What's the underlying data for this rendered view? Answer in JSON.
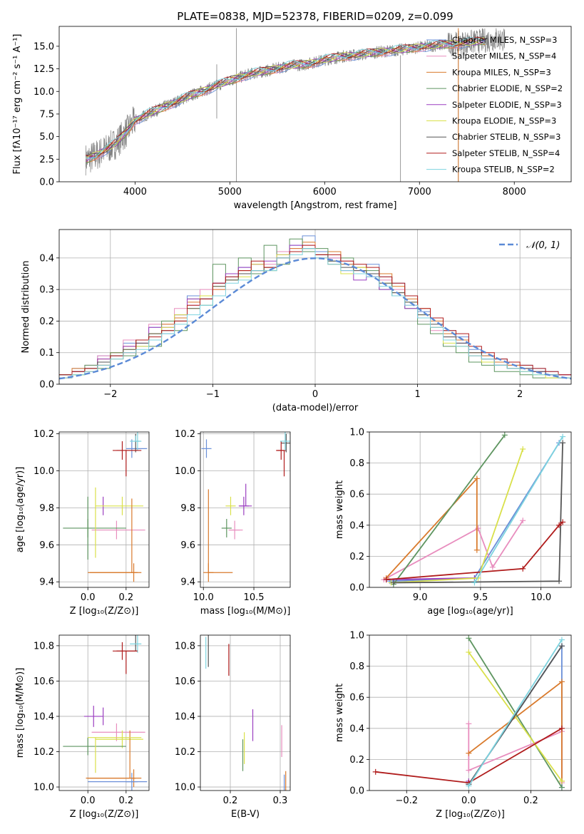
{
  "chart_data": [
    {
      "id": "spectrum",
      "type": "line",
      "title": "PLATE=0838, MJD=52378, FIBERID=0209, z=0.099",
      "xlabel": "wavelength [Angstrom, rest frame]",
      "ylabel": "Flux [fλ10⁻¹⁷ erg cm⁻² s⁻¹ A⁻¹]",
      "xlim": [
        3200,
        8600
      ],
      "ylim": [
        0,
        17.2
      ],
      "xticks": [
        4000,
        5000,
        6000,
        7000,
        8000
      ],
      "yticks": [
        0.0,
        2.5,
        5.0,
        7.5,
        10.0,
        12.5,
        15.0
      ],
      "data_series": {
        "name": "data",
        "color": "#808080",
        "x": [
          3500,
          3600,
          3700,
          3800,
          3900,
          4000,
          4200,
          4400,
          4600,
          4800,
          5000,
          5200,
          5400,
          5600,
          5800,
          6000,
          6200,
          6400,
          6600,
          6800,
          7000,
          7200,
          7400,
          7600,
          7800
        ],
        "y": [
          2.5,
          3.0,
          3.6,
          4.3,
          5.4,
          6.8,
          7.8,
          8.7,
          9.6,
          10.4,
          11.2,
          11.9,
          12.3,
          12.8,
          13.0,
          13.5,
          13.9,
          14.1,
          14.4,
          14.6,
          14.9,
          15.1,
          15.3,
          15.5,
          15.8
        ]
      },
      "legend": [
        "Chabrier MILES, N_SSP=3",
        "Salpeter MILES, N_SSP=4",
        "Kroupa MILES, N_SSP=3",
        "Chabrier ELODIE, N_SSP=2",
        "Salpeter ELODIE, N_SSP=3",
        "Kroupa ELODIE, N_SSP=3",
        "Chabrier STELIB, N_SSP=3",
        "Salpeter STELIB, N_SSP=4",
        "Kroupa STELIB, N_SSP=2"
      ],
      "legend_position": "right",
      "grid": false
    },
    {
      "id": "residuals",
      "type": "line",
      "xlabel": "(data-model)/error",
      "ylabel": "Normed distribution",
      "xlim": [
        -2.5,
        2.5
      ],
      "ylim": [
        0,
        0.49
      ],
      "xticks": [
        -2,
        -1,
        0,
        1,
        2
      ],
      "yticks": [
        0.0,
        0.1,
        0.2,
        0.3,
        0.4
      ],
      "legend": [
        "𝒩(0, 1)"
      ],
      "legend_position": "top-right",
      "grid": true
    },
    {
      "id": "age_vs_Z",
      "type": "scatter",
      "xlabel": "Z [log₁₀(Z/Z⊙)]",
      "ylabel": "age  [log₁₀(age/yr)]",
      "xlim": [
        -0.15,
        0.32
      ],
      "ylim": [
        9.37,
        10.21
      ],
      "xticks": [
        0.0,
        0.2
      ],
      "yticks": [
        9.4,
        9.6,
        9.8,
        10.0,
        10.2
      ],
      "grid": true
    },
    {
      "id": "age_vs_mass",
      "type": "scatter",
      "xlabel": "mass [log₁₀(M/M⊙)]",
      "xlim": [
        9.97,
        10.86
      ],
      "ylim": [
        9.37,
        10.21
      ],
      "xticks": [
        10.0,
        10.5
      ],
      "yticks": [
        9.4,
        9.6,
        9.8,
        10.0,
        10.2
      ],
      "grid": true
    },
    {
      "id": "weight_vs_age",
      "type": "line",
      "xlabel": "age  [log₁₀(age/yr)]",
      "ylabel": "mass weight",
      "xlim": [
        8.58,
        10.25
      ],
      "ylim": [
        0,
        1.0
      ],
      "xticks": [
        9.0,
        9.5,
        10.0
      ],
      "yticks": [
        0.0,
        0.2,
        0.4,
        0.6,
        0.8,
        1.0
      ],
      "grid": true
    },
    {
      "id": "mass_vs_Z",
      "type": "scatter",
      "xlabel": "Z [log₁₀(Z/Z⊙)]",
      "ylabel": "mass [log₁₀(M/M⊙)]",
      "xlim": [
        -0.15,
        0.32
      ],
      "ylim": [
        9.98,
        10.86
      ],
      "xticks": [
        0.0,
        0.2
      ],
      "yticks": [
        10.0,
        10.2,
        10.4,
        10.6,
        10.8
      ],
      "grid": true
    },
    {
      "id": "mass_vs_EBV",
      "type": "scatter",
      "xlabel": "E(B-V)",
      "xlim": [
        0.14,
        0.32
      ],
      "ylim": [
        9.98,
        10.86
      ],
      "xticks": [
        0.2,
        0.3
      ],
      "yticks": [
        10.0,
        10.2,
        10.4,
        10.6,
        10.8
      ],
      "grid": true
    },
    {
      "id": "weight_vs_Z",
      "type": "line",
      "xlabel": "Z [log₁₀(Z/Z⊙)]",
      "ylabel": "mass weight",
      "xlim": [
        -0.32,
        0.33
      ],
      "ylim": [
        0,
        1.0
      ],
      "xticks": [
        -0.2,
        0.0,
        0.2
      ],
      "yticks": [
        0.0,
        0.2,
        0.4,
        0.6,
        0.8,
        1.0
      ],
      "grid": true
    }
  ],
  "models": [
    {
      "name": "Chabrier MILES",
      "color": "#6a8fd8",
      "hist": [
        0.03,
        0.05,
        0.05,
        0.09,
        0.09,
        0.13,
        0.12,
        0.18,
        0.16,
        0.22,
        0.28,
        0.27,
        0.32,
        0.34,
        0.37,
        0.36,
        0.36,
        0.4,
        0.44,
        0.47,
        0.42,
        0.4,
        0.38,
        0.37,
        0.38,
        0.34,
        0.32,
        0.28,
        0.23,
        0.21,
        0.17,
        0.15,
        0.11,
        0.09,
        0.08,
        0.06,
        0.06,
        0.05,
        0.04,
        0.03
      ],
      "age": 10.12,
      "ageErr": [
        0.06,
        0.03
      ],
      "Z": 0.23,
      "ZErr": [
        0.03,
        0.08
      ],
      "mass": 10.03,
      "massErr": [
        0.01,
        0.28
      ],
      "mErrL": 0.28,
      "ebv": 0.308,
      "wAge": [
        [
          8.75,
          0.04
        ],
        [
          9.45,
          0.06
        ],
        [
          10.15,
          0.93
        ]
      ],
      "wZ": [
        [
          0.0,
          0.04
        ],
        [
          0.3,
          0.93
        ],
        [
          0.3,
          0.02
        ]
      ]
    },
    {
      "name": "Salpeter MILES",
      "color": "#e88dbe",
      "hist": [
        0.02,
        0.04,
        0.06,
        0.09,
        0.1,
        0.14,
        0.14,
        0.19,
        0.19,
        0.24,
        0.25,
        0.3,
        0.3,
        0.35,
        0.36,
        0.38,
        0.38,
        0.42,
        0.43,
        0.44,
        0.41,
        0.4,
        0.39,
        0.36,
        0.34,
        0.33,
        0.3,
        0.25,
        0.21,
        0.17,
        0.15,
        0.12,
        0.09,
        0.07,
        0.06,
        0.06,
        0.04,
        0.04,
        0.03,
        0.02
      ],
      "age": 9.68,
      "ageErr": [
        0.0,
        0.0
      ],
      "Z": 0.15,
      "ZErr": [
        0.13,
        0.15
      ],
      "mass": 10.31,
      "massErr": [
        0.13,
        0.14
      ],
      "ebv": 0.303,
      "wAge": [
        [
          8.7,
          0.05
        ],
        [
          9.48,
          0.38
        ],
        [
          9.6,
          0.13
        ],
        [
          9.85,
          0.43
        ]
      ],
      "wZ": [
        [
          0.0,
          0.43
        ],
        [
          0.0,
          0.13
        ],
        [
          0.3,
          0.38
        ],
        [
          0.3,
          0.05
        ]
      ]
    },
    {
      "name": "Kroupa MILES",
      "color": "#d97a2c",
      "hist": [
        0.02,
        0.05,
        0.04,
        0.08,
        0.1,
        0.12,
        0.14,
        0.16,
        0.19,
        0.21,
        0.26,
        0.28,
        0.3,
        0.35,
        0.36,
        0.36,
        0.37,
        0.4,
        0.43,
        0.45,
        0.41,
        0.42,
        0.38,
        0.37,
        0.35,
        0.35,
        0.31,
        0.27,
        0.24,
        0.2,
        0.16,
        0.14,
        0.1,
        0.09,
        0.07,
        0.06,
        0.05,
        0.04,
        0.03,
        0.03
      ],
      "age": 9.45,
      "ageErr": [
        0.0,
        0.0
      ],
      "Z": 0.24,
      "ZErr": [
        0.24,
        0.04
      ],
      "mass": 10.05,
      "massErr": [
        0.26,
        0.02
      ],
      "ebv": 0.311,
      "wAge": [
        [
          8.72,
          0.06
        ],
        [
          9.47,
          0.7
        ],
        [
          9.47,
          0.24
        ]
      ],
      "wZ": [
        [
          0.0,
          0.24
        ],
        [
          0.3,
          0.7
        ],
        [
          0.3,
          0.06
        ]
      ]
    },
    {
      "name": "Chabrier ELODIE",
      "color": "#5e9560",
      "hist": [
        0.03,
        0.03,
        0.06,
        0.05,
        0.1,
        0.09,
        0.14,
        0.12,
        0.2,
        0.17,
        0.27,
        0.25,
        0.38,
        0.33,
        0.4,
        0.35,
        0.44,
        0.38,
        0.46,
        0.42,
        0.43,
        0.39,
        0.4,
        0.35,
        0.36,
        0.3,
        0.28,
        0.24,
        0.19,
        0.16,
        0.12,
        0.1,
        0.07,
        0.06,
        0.04,
        0.04,
        0.03,
        0.02,
        0.02,
        0.02
      ],
      "age": 9.69,
      "ageErr": [
        0.24,
        0.17
      ],
      "Z": 0.0,
      "ZErr": [
        0.0,
        0.0
      ],
      "mass": 10.23,
      "massErr": [
        0.0,
        0.0
      ],
      "ebv": 0.225,
      "wAge": [
        [
          8.78,
          0.02
        ],
        [
          9.7,
          0.98
        ]
      ],
      "wZ": [
        [
          0.0,
          0.98
        ],
        [
          0.3,
          0.02
        ]
      ]
    },
    {
      "name": "Salpeter ELODIE",
      "color": "#9b3fc0",
      "hist": [
        0.02,
        0.04,
        0.05,
        0.08,
        0.08,
        0.12,
        0.13,
        0.18,
        0.18,
        0.22,
        0.27,
        0.27,
        0.32,
        0.35,
        0.37,
        0.38,
        0.39,
        0.41,
        0.44,
        0.43,
        0.4,
        0.38,
        0.36,
        0.33,
        0.34,
        0.3,
        0.29,
        0.24,
        0.21,
        0.18,
        0.14,
        0.13,
        0.09,
        0.08,
        0.06,
        0.05,
        0.05,
        0.04,
        0.03,
        0.03
      ],
      "age": 9.81,
      "ageErr": [
        0.12,
        0.12
      ],
      "Z": 0.08,
      "ZErr": [
        0.0,
        0.0
      ],
      "mass": 10.4,
      "massErr": [
        0.06,
        0.06
      ],
      "ebv": 0.245,
      "wAge": [
        [
          8.72,
          0.05
        ],
        [
          9.45,
          0.06
        ]
      ],
      "wZ": [
        [
          0.0,
          0.06
        ]
      ]
    },
    {
      "name": "Kroupa ELODIE",
      "color": "#d9e04a",
      "hist": [
        0.02,
        0.03,
        0.05,
        0.06,
        0.08,
        0.11,
        0.12,
        0.16,
        0.18,
        0.22,
        0.24,
        0.28,
        0.31,
        0.33,
        0.34,
        0.38,
        0.36,
        0.41,
        0.42,
        0.43,
        0.4,
        0.38,
        0.35,
        0.37,
        0.35,
        0.32,
        0.29,
        0.26,
        0.22,
        0.18,
        0.13,
        0.12,
        0.09,
        0.07,
        0.06,
        0.05,
        0.04,
        0.03,
        0.02,
        0.02
      ],
      "age": 9.81,
      "ageErr": [
        0.0,
        0.0
      ],
      "Z": 0.18,
      "ZErr": [
        0.14,
        0.11
      ],
      "mass": 10.27,
      "massErr": [
        0.0,
        0.0
      ],
      "ebv": 0.228,
      "wAge": [
        [
          8.76,
          0.03
        ],
        [
          9.48,
          0.06
        ],
        [
          9.85,
          0.89
        ]
      ],
      "wZ": [
        [
          0.0,
          0.89
        ],
        [
          0.3,
          0.06
        ]
      ]
    },
    {
      "name": "Chabrier STELIB",
      "color": "#555555",
      "hist": [
        0.03,
        0.04,
        0.05,
        0.07,
        0.09,
        0.11,
        0.13,
        0.16,
        0.17,
        0.2,
        0.24,
        0.27,
        0.31,
        0.33,
        0.35,
        0.36,
        0.37,
        0.4,
        0.42,
        0.43,
        0.41,
        0.39,
        0.37,
        0.36,
        0.35,
        0.32,
        0.29,
        0.26,
        0.22,
        0.19,
        0.15,
        0.13,
        0.1,
        0.08,
        0.06,
        0.05,
        0.05,
        0.04,
        0.03,
        0.02
      ],
      "age": 10.15,
      "ageErr": [
        0.0,
        0.0
      ],
      "Z": 0.25,
      "ZErr": [
        0.0,
        0.0
      ],
      "mass": 10.82,
      "massErr": [
        0.0,
        0.0
      ],
      "ebv": 0.156,
      "wAge": [
        [
          8.78,
          0.03
        ],
        [
          10.15,
          0.04
        ],
        [
          10.18,
          0.93
        ]
      ],
      "wZ": [
        [
          0.0,
          0.04
        ],
        [
          0.3,
          0.93
        ]
      ]
    },
    {
      "name": "Salpeter STELIB",
      "color": "#b01c1c",
      "hist": [
        0.03,
        0.04,
        0.05,
        0.06,
        0.09,
        0.1,
        0.14,
        0.15,
        0.17,
        0.2,
        0.25,
        0.27,
        0.32,
        0.34,
        0.36,
        0.39,
        0.37,
        0.4,
        0.42,
        0.44,
        0.41,
        0.41,
        0.39,
        0.38,
        0.37,
        0.34,
        0.32,
        0.28,
        0.24,
        0.21,
        0.17,
        0.16,
        0.12,
        0.1,
        0.08,
        0.07,
        0.06,
        0.05,
        0.04,
        0.03
      ],
      "age": 10.11,
      "ageErr": [
        0.0,
        0.0
      ],
      "Z": 0.18,
      "ZErr": [
        0.05,
        0.08
      ],
      "mass": 10.77,
      "massErr": [
        0.1,
        0.05
      ],
      "ebv": 0.197,
      "wAge": [
        [
          8.72,
          0.05
        ],
        [
          9.85,
          0.12
        ],
        [
          10.15,
          0.4
        ],
        [
          10.18,
          0.42
        ]
      ],
      "wZ": [
        [
          -0.3,
          0.12
        ],
        [
          0.0,
          0.05
        ],
        [
          0.3,
          0.4
        ]
      ]
    },
    {
      "name": "Kroupa STELIB",
      "color": "#7dd3df",
      "hist": [
        0.02,
        0.03,
        0.04,
        0.06,
        0.08,
        0.1,
        0.11,
        0.14,
        0.16,
        0.19,
        0.22,
        0.25,
        0.28,
        0.32,
        0.33,
        0.36,
        0.36,
        0.4,
        0.41,
        0.43,
        0.4,
        0.38,
        0.36,
        0.35,
        0.34,
        0.31,
        0.28,
        0.25,
        0.21,
        0.18,
        0.14,
        0.12,
        0.09,
        0.08,
        0.06,
        0.05,
        0.04,
        0.03,
        0.03,
        0.02
      ],
      "age": 10.16,
      "ageErr": [
        0.0,
        0.0
      ],
      "Z": 0.26,
      "ZErr": [
        0.04,
        0.02
      ],
      "mass": 10.81,
      "massErr": [
        0.0,
        0.0
      ],
      "ebv": 0.151,
      "wAge": [
        [
          9.45,
          0.03
        ],
        [
          10.18,
          0.97
        ]
      ],
      "wZ": [
        [
          0.0,
          0.03
        ],
        [
          0.3,
          0.97
        ]
      ]
    }
  ],
  "normal_curve": {
    "label": "𝒩(0, 1)",
    "color": "#5b8ad6"
  }
}
